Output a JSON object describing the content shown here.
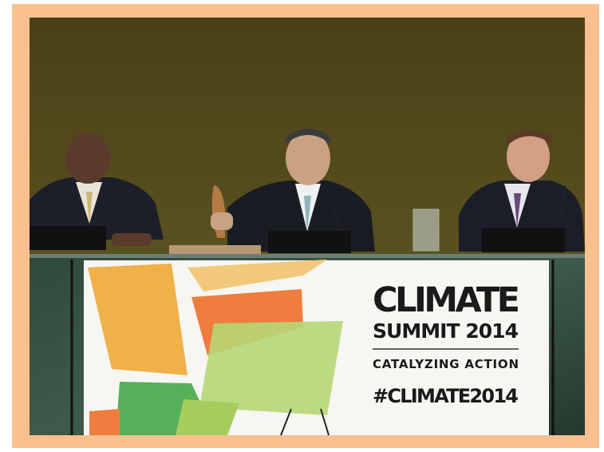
{
  "banner": {
    "title": "CLIMATE",
    "subtitle": "SUMMIT 2014",
    "tagline": "CATALYZING ACTION",
    "hashtag": "#CLIMATE2014"
  }
}
